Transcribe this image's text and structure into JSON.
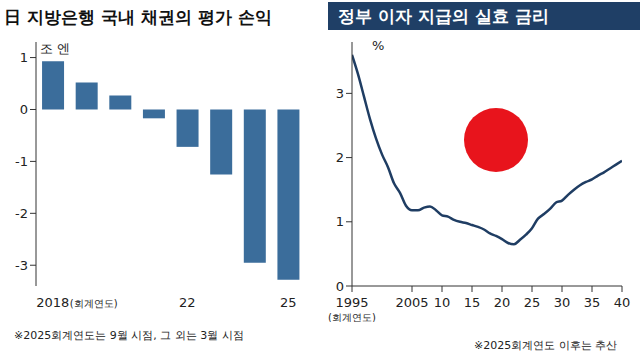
{
  "chart_data": [
    {
      "type": "bar",
      "title": "日 지방은행 국내 채권의 평가 손익",
      "y_label": "조 엔",
      "x_label": "(회계연도)",
      "categories": [
        "2018",
        null,
        null,
        null,
        "22",
        null,
        null,
        "25"
      ],
      "values": [
        0.93,
        0.52,
        0.27,
        -0.17,
        -0.72,
        -1.25,
        -2.95,
        -3.28
      ],
      "color": "#3b6d9b",
      "ylim": [
        -3.4,
        1.3
      ],
      "yticks": [
        -3,
        -2,
        -1,
        0,
        1
      ],
      "grid": false,
      "note": "※2025회계연도는 9월 시점, 그 외는 3월 시점"
    },
    {
      "type": "line",
      "title": "정부 이자 지급의 실효 금리",
      "y_label": "%",
      "x_label": "(회계연도)",
      "x": [
        1995,
        1996,
        1997,
        1998,
        1999,
        2000,
        2001,
        2002,
        2003,
        2004,
        2005,
        2006,
        2007,
        2008,
        2009,
        2010,
        2011,
        2012,
        2013,
        2014,
        2015,
        2016,
        2017,
        2018,
        2019,
        2020,
        2021,
        2022,
        2023,
        2024,
        2025,
        2026,
        2027,
        2028,
        2029,
        2030,
        2031,
        2032,
        2033,
        2034,
        2035,
        2036,
        2037,
        2038,
        2039,
        2040
      ],
      "values": [
        3.6,
        3.3,
        2.95,
        2.6,
        2.3,
        2.05,
        1.85,
        1.6,
        1.45,
        1.25,
        1.18,
        1.18,
        1.22,
        1.24,
        1.18,
        1.1,
        1.08,
        1.03,
        1.0,
        0.98,
        0.95,
        0.92,
        0.88,
        0.82,
        0.78,
        0.73,
        0.67,
        0.65,
        0.72,
        0.8,
        0.9,
        1.05,
        1.12,
        1.2,
        1.3,
        1.33,
        1.42,
        1.5,
        1.57,
        1.62,
        1.66,
        1.72,
        1.77,
        1.83,
        1.89,
        1.95
      ],
      "color": "#1f3d63",
      "xlim": [
        1995,
        2040
      ],
      "xticks": [
        1995,
        2005,
        {
          "value": 2010,
          "label": "10"
        },
        {
          "value": 2015,
          "label": "15"
        },
        {
          "value": 2020,
          "label": "20"
        },
        {
          "value": 2025,
          "label": "25"
        },
        {
          "value": 2030,
          "label": "30"
        },
        {
          "value": 2035,
          "label": "35"
        },
        {
          "value": 2040,
          "label": "40"
        }
      ],
      "ylim": [
        0,
        3.8
      ],
      "yticks": [
        0,
        1,
        2,
        3
      ],
      "grid": false,
      "note": "※2025회계연도 이후는 추산"
    }
  ]
}
